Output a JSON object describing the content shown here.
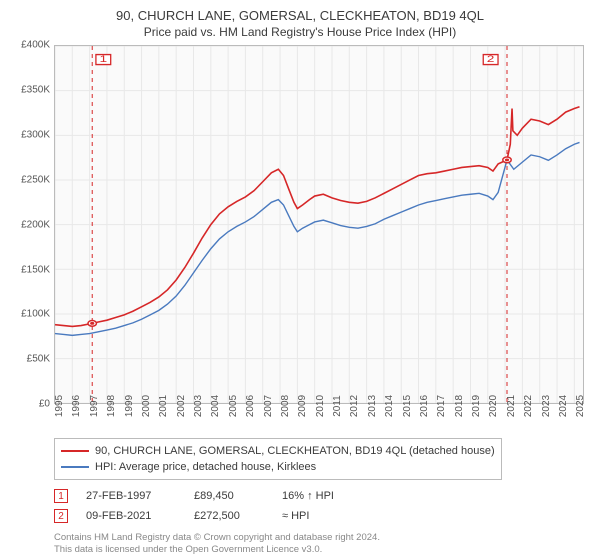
{
  "titles": {
    "address": "90, CHURCH LANE, GOMERSAL, CLECKHEATON, BD19 4QL",
    "subtitle": "Price paid vs. HM Land Registry's House Price Index (HPI)"
  },
  "chart": {
    "type": "line",
    "background_color": "#fafafa",
    "grid_color": "#e8e8e8",
    "axis_color": "#bbbbbb",
    "xlim": [
      1995,
      2025.5
    ],
    "ylim": [
      0,
      400000
    ],
    "ytick_step": 50000,
    "yticks": [
      {
        "v": 0,
        "label": "£0"
      },
      {
        "v": 50000,
        "label": "£50K"
      },
      {
        "v": 100000,
        "label": "£100K"
      },
      {
        "v": 150000,
        "label": "£150K"
      },
      {
        "v": 200000,
        "label": "£200K"
      },
      {
        "v": 250000,
        "label": "£250K"
      },
      {
        "v": 300000,
        "label": "£300K"
      },
      {
        "v": 350000,
        "label": "£350K"
      },
      {
        "v": 400000,
        "label": "£400K"
      }
    ],
    "xticks": [
      1995,
      1996,
      1997,
      1998,
      1999,
      2000,
      2001,
      2002,
      2003,
      2004,
      2005,
      2006,
      2007,
      2008,
      2009,
      2010,
      2011,
      2012,
      2013,
      2014,
      2015,
      2016,
      2017,
      2018,
      2019,
      2020,
      2021,
      2022,
      2023,
      2024,
      2025
    ],
    "series": [
      {
        "id": "property",
        "label": "90, CHURCH LANE, GOMERSAL, CLECKHEATON, BD19 4QL (detached house)",
        "color": "#d62728",
        "line_width": 1.6,
        "data": [
          [
            1995.0,
            88000
          ],
          [
            1995.5,
            87000
          ],
          [
            1996.0,
            86000
          ],
          [
            1996.5,
            87000
          ],
          [
            1997.15,
            89450
          ],
          [
            1997.5,
            91000
          ],
          [
            1998.0,
            93000
          ],
          [
            1998.5,
            96000
          ],
          [
            1999.0,
            99000
          ],
          [
            1999.5,
            103000
          ],
          [
            2000.0,
            108000
          ],
          [
            2000.5,
            113000
          ],
          [
            2001.0,
            119000
          ],
          [
            2001.5,
            127000
          ],
          [
            2002.0,
            138000
          ],
          [
            2002.5,
            152000
          ],
          [
            2003.0,
            168000
          ],
          [
            2003.5,
            185000
          ],
          [
            2004.0,
            200000
          ],
          [
            2004.5,
            212000
          ],
          [
            2005.0,
            220000
          ],
          [
            2005.5,
            226000
          ],
          [
            2006.0,
            231000
          ],
          [
            2006.5,
            238000
          ],
          [
            2007.0,
            248000
          ],
          [
            2007.5,
            258000
          ],
          [
            2007.9,
            262000
          ],
          [
            2008.2,
            255000
          ],
          [
            2008.5,
            240000
          ],
          [
            2008.8,
            225000
          ],
          [
            2009.0,
            218000
          ],
          [
            2009.3,
            222000
          ],
          [
            2009.7,
            228000
          ],
          [
            2010.0,
            232000
          ],
          [
            2010.5,
            234000
          ],
          [
            2011.0,
            230000
          ],
          [
            2011.5,
            227000
          ],
          [
            2012.0,
            225000
          ],
          [
            2012.5,
            224000
          ],
          [
            2013.0,
            226000
          ],
          [
            2013.5,
            230000
          ],
          [
            2014.0,
            235000
          ],
          [
            2014.5,
            240000
          ],
          [
            2015.0,
            245000
          ],
          [
            2015.5,
            250000
          ],
          [
            2016.0,
            255000
          ],
          [
            2016.5,
            257000
          ],
          [
            2017.0,
            258000
          ],
          [
            2017.5,
            260000
          ],
          [
            2018.0,
            262000
          ],
          [
            2018.5,
            264000
          ],
          [
            2019.0,
            265000
          ],
          [
            2019.5,
            266000
          ],
          [
            2020.0,
            264000
          ],
          [
            2020.3,
            260000
          ],
          [
            2020.6,
            268000
          ],
          [
            2021.11,
            272500
          ],
          [
            2021.3,
            290000
          ],
          [
            2021.4,
            330000
          ],
          [
            2021.45,
            305000
          ],
          [
            2021.7,
            300000
          ],
          [
            2022.0,
            308000
          ],
          [
            2022.5,
            318000
          ],
          [
            2023.0,
            316000
          ],
          [
            2023.5,
            312000
          ],
          [
            2024.0,
            318000
          ],
          [
            2024.5,
            326000
          ],
          [
            2025.0,
            330000
          ],
          [
            2025.3,
            332000
          ]
        ]
      },
      {
        "id": "hpi",
        "label": "HPI: Average price, detached house, Kirklees",
        "color": "#4a7abf",
        "line_width": 1.4,
        "data": [
          [
            1995.0,
            78000
          ],
          [
            1995.5,
            77000
          ],
          [
            1996.0,
            76000
          ],
          [
            1996.5,
            77000
          ],
          [
            1997.0,
            78000
          ],
          [
            1997.5,
            80000
          ],
          [
            1998.0,
            82000
          ],
          [
            1998.5,
            84000
          ],
          [
            1999.0,
            87000
          ],
          [
            1999.5,
            90000
          ],
          [
            2000.0,
            94000
          ],
          [
            2000.5,
            99000
          ],
          [
            2001.0,
            104000
          ],
          [
            2001.5,
            111000
          ],
          [
            2002.0,
            120000
          ],
          [
            2002.5,
            132000
          ],
          [
            2003.0,
            146000
          ],
          [
            2003.5,
            160000
          ],
          [
            2004.0,
            173000
          ],
          [
            2004.5,
            184000
          ],
          [
            2005.0,
            192000
          ],
          [
            2005.5,
            198000
          ],
          [
            2006.0,
            203000
          ],
          [
            2006.5,
            209000
          ],
          [
            2007.0,
            217000
          ],
          [
            2007.5,
            225000
          ],
          [
            2007.9,
            228000
          ],
          [
            2008.2,
            222000
          ],
          [
            2008.5,
            210000
          ],
          [
            2008.8,
            198000
          ],
          [
            2009.0,
            192000
          ],
          [
            2009.3,
            196000
          ],
          [
            2009.7,
            200000
          ],
          [
            2010.0,
            203000
          ],
          [
            2010.5,
            205000
          ],
          [
            2011.0,
            202000
          ],
          [
            2011.5,
            199000
          ],
          [
            2012.0,
            197000
          ],
          [
            2012.5,
            196000
          ],
          [
            2013.0,
            198000
          ],
          [
            2013.5,
            201000
          ],
          [
            2014.0,
            206000
          ],
          [
            2014.5,
            210000
          ],
          [
            2015.0,
            214000
          ],
          [
            2015.5,
            218000
          ],
          [
            2016.0,
            222000
          ],
          [
            2016.5,
            225000
          ],
          [
            2017.0,
            227000
          ],
          [
            2017.5,
            229000
          ],
          [
            2018.0,
            231000
          ],
          [
            2018.5,
            233000
          ],
          [
            2019.0,
            234000
          ],
          [
            2019.5,
            235000
          ],
          [
            2020.0,
            232000
          ],
          [
            2020.3,
            228000
          ],
          [
            2020.6,
            236000
          ],
          [
            2021.11,
            272500
          ],
          [
            2021.5,
            262000
          ],
          [
            2022.0,
            270000
          ],
          [
            2022.5,
            278000
          ],
          [
            2023.0,
            276000
          ],
          [
            2023.5,
            272000
          ],
          [
            2024.0,
            278000
          ],
          [
            2024.5,
            285000
          ],
          [
            2025.0,
            290000
          ],
          [
            2025.3,
            292000
          ]
        ]
      }
    ],
    "event_markers": [
      {
        "n": "1",
        "x": 1997.15,
        "y": 89450,
        "color": "#d62728",
        "line_dash": "4 4"
      },
      {
        "n": "2",
        "x": 2021.11,
        "y": 272500,
        "color": "#d62728",
        "line_dash": "4 4"
      }
    ]
  },
  "legend": {
    "rows": [
      {
        "color": "#d62728",
        "text": "90, CHURCH LANE, GOMERSAL, CLECKHEATON, BD19 4QL (detached house)"
      },
      {
        "color": "#4a7abf",
        "text": "HPI: Average price, detached house, Kirklees"
      }
    ]
  },
  "events_table": {
    "rows": [
      {
        "n": "1",
        "date": "27-FEB-1997",
        "price": "£89,450",
        "delta": "16% ↑ HPI",
        "color": "#d62728"
      },
      {
        "n": "2",
        "date": "09-FEB-2021",
        "price": "£272,500",
        "delta": "≈ HPI",
        "color": "#d62728"
      }
    ]
  },
  "footer": {
    "line1": "Contains HM Land Registry data © Crown copyright and database right 2024.",
    "line2": "This data is licensed under the Open Government Licence v3.0."
  },
  "font": {
    "title_size": 13,
    "subtitle_size": 12,
    "axis_label_size": 10,
    "legend_size": 11,
    "footer_size": 9.5
  }
}
